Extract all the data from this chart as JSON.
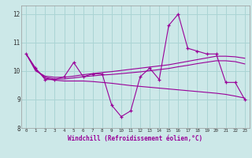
{
  "xlabel": "Windchill (Refroidissement éolien,°C)",
  "bg_color": "#cce8e8",
  "grid_color": "#aad4d4",
  "line_color": "#990099",
  "x_data": [
    0,
    1,
    2,
    3,
    4,
    5,
    6,
    7,
    8,
    9,
    10,
    11,
    12,
    13,
    14,
    15,
    16,
    17,
    18,
    19,
    20,
    21,
    22,
    23
  ],
  "y_main": [
    10.6,
    10.1,
    9.7,
    9.7,
    9.8,
    10.3,
    9.8,
    9.9,
    9.9,
    8.8,
    8.4,
    8.6,
    9.8,
    10.1,
    9.7,
    11.6,
    12.0,
    10.8,
    10.7,
    10.6,
    10.6,
    9.6,
    9.6,
    9.0
  ],
  "y_trend_up1": [
    10.6,
    10.0,
    9.82,
    9.78,
    9.78,
    9.82,
    9.87,
    9.91,
    9.95,
    9.98,
    10.02,
    10.06,
    10.1,
    10.14,
    10.18,
    10.22,
    10.28,
    10.34,
    10.4,
    10.46,
    10.52,
    10.52,
    10.5,
    10.45
  ],
  "y_trend_up2": [
    10.6,
    10.05,
    9.78,
    9.72,
    9.72,
    9.76,
    9.8,
    9.83,
    9.86,
    9.88,
    9.91,
    9.94,
    9.97,
    10.01,
    10.05,
    10.09,
    10.15,
    10.2,
    10.26,
    10.31,
    10.36,
    10.36,
    10.33,
    10.25
  ],
  "y_trend_down": [
    10.6,
    10.05,
    9.75,
    9.68,
    9.65,
    9.65,
    9.65,
    9.63,
    9.6,
    9.57,
    9.53,
    9.49,
    9.46,
    9.43,
    9.4,
    9.37,
    9.34,
    9.31,
    9.28,
    9.25,
    9.22,
    9.18,
    9.12,
    9.05
  ],
  "xlim": [
    -0.5,
    23.5
  ],
  "ylim": [
    8.0,
    12.3
  ],
  "yticks": [
    8,
    9,
    10,
    11,
    12
  ],
  "xticks": [
    0,
    1,
    2,
    3,
    4,
    5,
    6,
    7,
    8,
    9,
    10,
    11,
    12,
    13,
    14,
    15,
    16,
    17,
    18,
    19,
    20,
    21,
    22,
    23
  ]
}
